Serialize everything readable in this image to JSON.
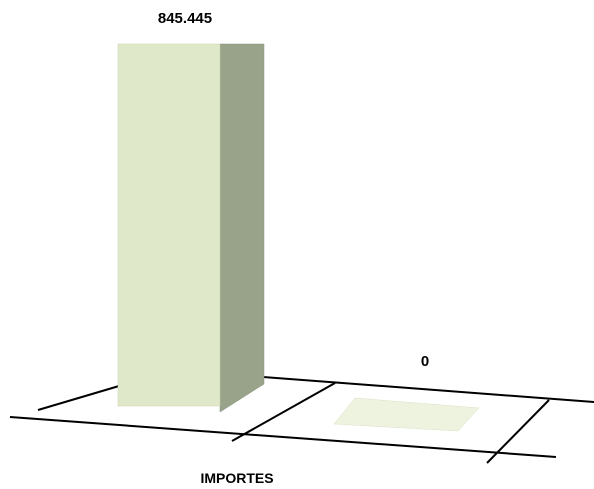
{
  "chart_data": {
    "type": "bar",
    "categories": [
      "IMPORTES",
      ""
    ],
    "values": [
      845445,
      0
    ],
    "data_labels": [
      "845.445",
      "0"
    ],
    "title": "",
    "xlabel": "",
    "ylabel": "",
    "grid": false,
    "legend": "none",
    "style": "3d-column",
    "colors": {
      "front": "#dfe8c8",
      "side": "#98a38a",
      "top": "#eef3df",
      "floor_line": "#000000"
    }
  }
}
